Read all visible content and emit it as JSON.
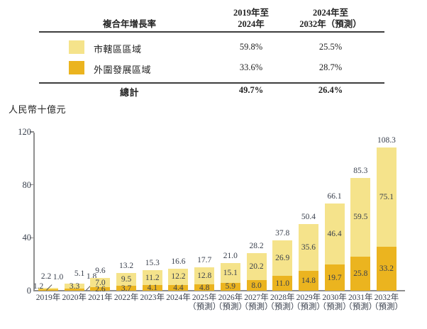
{
  "table": {
    "header": {
      "col1": "複合年增長率",
      "col2_line1": "2019年至",
      "col2_line2": "2024年",
      "col3_line1": "2024年至",
      "col3_line2": "2032年（預測）"
    },
    "rows": [
      {
        "label": "市轄區區域",
        "swatch": "#F5E38B",
        "cagr_2019_2024": "59.8%",
        "cagr_2024_2032": "25.5%"
      },
      {
        "label": "外圍發展區域",
        "swatch": "#EBB41F",
        "cagr_2019_2024": "33.6%",
        "cagr_2024_2032": "28.7%"
      }
    ],
    "total": {
      "label": "總計",
      "cagr_2019_2024": "49.7%",
      "cagr_2024_2032": "26.4%"
    }
  },
  "chart_data": {
    "type": "bar",
    "stacked": true,
    "unit_label": "人民幣十億元",
    "categories": [
      "2019年",
      "2020年",
      "2021年",
      "2022年",
      "2023年",
      "2024年",
      "2025年",
      "2026年",
      "2027年",
      "2028年",
      "2029年",
      "2030年",
      "2031年",
      "2032年"
    ],
    "forecast_note": "（預測）",
    "forecast_start_index": 6,
    "series": [
      {
        "name": "市轄區區域",
        "stack": "top",
        "color": "#F5E38B",
        "values": [
          1.2,
          3.3,
          7.0,
          9.5,
          11.2,
          12.2,
          12.8,
          15.1,
          20.2,
          26.9,
          35.6,
          46.4,
          59.5,
          75.1
        ]
      },
      {
        "name": "外圍發展區域",
        "stack": "bottom",
        "color": "#EBB41F",
        "values": [
          1.0,
          1.8,
          2.6,
          3.7,
          4.1,
          4.4,
          4.8,
          5.9,
          8.0,
          11.0,
          14.8,
          19.7,
          25.8,
          33.2
        ]
      }
    ],
    "totals": [
      2.2,
      5.1,
      9.6,
      13.2,
      15.3,
      16.6,
      17.7,
      21.0,
      28.2,
      37.8,
      50.4,
      66.1,
      85.3,
      108.3
    ],
    "y_ticks": [
      0,
      40,
      80,
      120
    ],
    "ylim": [
      0,
      120
    ],
    "grid": false,
    "legend_position": "table-above"
  }
}
